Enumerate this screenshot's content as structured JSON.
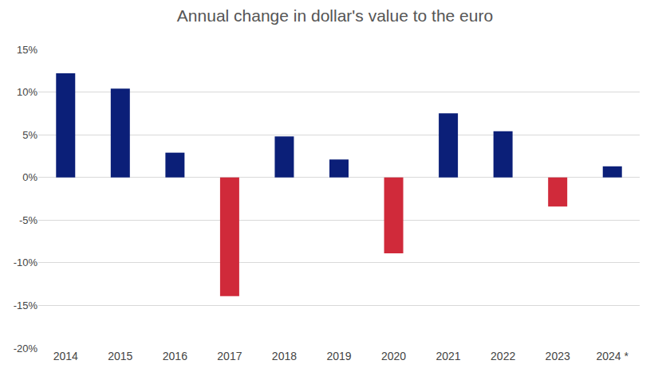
{
  "chart_data": {
    "type": "bar",
    "title": "Annual change in dollar's value to the euro",
    "categories": [
      "2014",
      "2015",
      "2016",
      "2017",
      "2018",
      "2019",
      "2020",
      "2021",
      "2022",
      "2023",
      "2024 *"
    ],
    "values": [
      12.2,
      10.4,
      2.9,
      -13.9,
      4.8,
      2.1,
      -8.9,
      7.5,
      5.4,
      -3.4,
      1.3
    ],
    "colors": [
      "#0b1f78",
      "#0b1f78",
      "#0b1f78",
      "#d02a3a",
      "#0b1f78",
      "#0b1f78",
      "#d02a3a",
      "#0b1f78",
      "#0b1f78",
      "#d02a3a",
      "#0b1f78"
    ],
    "ylim": [
      -20,
      15
    ],
    "yticks": [
      {
        "value": -20,
        "label": "-20%"
      },
      {
        "value": -15,
        "label": "-15%"
      },
      {
        "value": -10,
        "label": "-10%"
      },
      {
        "value": -5,
        "label": "-5%"
      },
      {
        "value": 0,
        "label": "0%"
      },
      {
        "value": 5,
        "label": "5%"
      },
      {
        "value": 10,
        "label": "10%"
      },
      {
        "value": 15,
        "label": "15%"
      }
    ],
    "grid": true
  }
}
